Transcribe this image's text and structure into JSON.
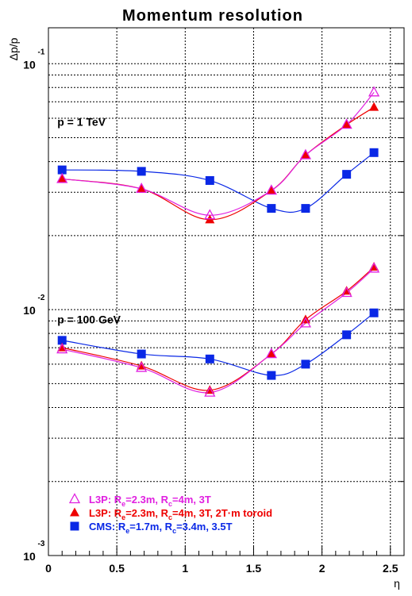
{
  "chart_data": {
    "type": "scatter",
    "title": "Momentum resolution",
    "ylabel": "Δp/p",
    "xlabel": "η",
    "xlim": [
      0,
      2.6
    ],
    "ylim": [
      0.001,
      0.14
    ],
    "yscale": "log",
    "grid": true,
    "legend_position": "bottom-left",
    "x_ticks": [
      "0",
      "0.5",
      "1",
      "1.5",
      "2",
      "2.5"
    ],
    "y_ticks": [
      {
        "base": "10",
        "exp": "-3"
      },
      {
        "base": "10",
        "exp": "-2"
      },
      {
        "base": "10",
        "exp": "-1"
      }
    ],
    "annotations": [
      {
        "text": "p = 1 TeV",
        "x": 0.1,
        "y": 0.056
      },
      {
        "text": "p = 100 GeV",
        "x": 0.1,
        "y": 0.0088
      }
    ],
    "series": [
      {
        "legend": [
          {
            "t": "L3P: R"
          },
          {
            "t": "e",
            "sub": true
          },
          {
            "t": "=2.3m, R"
          },
          {
            "t": "c",
            "sub": true
          },
          {
            "t": "=4m, 3T"
          }
        ],
        "color": "#e020e0",
        "marker": "open-triangle",
        "groups": [
          {
            "label": "p = 1 TeV",
            "x": [
              0.1,
              0.68,
              1.18,
              1.63,
              1.88,
              2.18,
              2.38
            ],
            "y": [
              0.034,
              0.031,
              0.0242,
              0.0305,
              0.0425,
              0.0565,
              0.0765
            ]
          },
          {
            "label": "p = 100 GeV",
            "x": [
              0.1,
              0.68,
              1.18,
              1.63,
              1.88,
              2.18,
              2.38
            ],
            "y": [
              0.0069,
              0.0058,
              0.0046,
              0.0066,
              0.0088,
              0.0117,
              0.0147
            ]
          }
        ]
      },
      {
        "legend": [
          {
            "t": "L3P: R"
          },
          {
            "t": "e",
            "sub": true
          },
          {
            "t": "=2.3m, R"
          },
          {
            "t": "c",
            "sub": true
          },
          {
            "t": "=4m, 3T, 2T·m toroid"
          }
        ],
        "color": "#ee0000",
        "marker": "filled-triangle",
        "groups": [
          {
            "label": "p = 1 TeV",
            "x": [
              0.1,
              0.68,
              1.18,
              1.63,
              1.88,
              2.18,
              2.38
            ],
            "y": [
              0.034,
              0.031,
              0.0232,
              0.0305,
              0.0425,
              0.0565,
              0.0665
            ]
          },
          {
            "label": "p = 100 GeV",
            "x": [
              0.1,
              0.68,
              1.18,
              1.63,
              1.88,
              2.18,
              2.38
            ],
            "y": [
              0.007,
              0.0059,
              0.0047,
              0.0066,
              0.0091,
              0.0119,
              0.0149
            ]
          }
        ]
      },
      {
        "legend": [
          {
            "t": "CMS: R"
          },
          {
            "t": "e",
            "sub": true
          },
          {
            "t": "=1.7m, R"
          },
          {
            "t": "c",
            "sub": true
          },
          {
            "t": "=3.4m, 3.5T"
          }
        ],
        "color": "#0a28e6",
        "marker": "filled-square",
        "groups": [
          {
            "label": "p = 1 TeV",
            "x": [
              0.1,
              0.68,
              1.18,
              1.63,
              1.88,
              2.18,
              2.38
            ],
            "y": [
              0.037,
              0.0365,
              0.0335,
              0.0258,
              0.0258,
              0.0355,
              0.0435
            ]
          },
          {
            "label": "p = 100 GeV",
            "x": [
              0.1,
              0.68,
              1.18,
              1.63,
              1.88,
              2.18,
              2.38
            ],
            "y": [
              0.0075,
              0.0066,
              0.0063,
              0.0054,
              0.006,
              0.0079,
              0.0097
            ]
          }
        ]
      }
    ]
  }
}
